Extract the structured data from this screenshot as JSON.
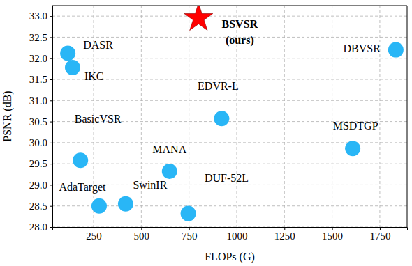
{
  "chart_data": {
    "type": "scatter",
    "x_label": "FLOPs (G)",
    "y_label": "PSNR (dB)",
    "xlim": [
      34,
      1893
    ],
    "ylim": [
      28.0,
      33.25
    ],
    "xticks": [
      250,
      500,
      750,
      1000,
      1250,
      1500,
      1750
    ],
    "yticks": [
      {
        "value": 28.0,
        "label": "28.0"
      },
      {
        "value": 28.5,
        "label": "28.5"
      },
      {
        "value": 29.0,
        "label": "29.0"
      },
      {
        "value": 29.5,
        "label": "29.5"
      },
      {
        "value": 30.0,
        "label": "30.0"
      },
      {
        "value": 30.5,
        "label": "30.5"
      },
      {
        "value": 31.0,
        "label": "31.0"
      },
      {
        "value": 31.5,
        "label": "31.5"
      },
      {
        "value": 32.0,
        "label": "32.0"
      },
      {
        "value": 32.5,
        "label": "32.5"
      },
      {
        "value": 33.0,
        "label": "33.0"
      }
    ],
    "grid": true,
    "series": [
      {
        "labels": [
          "DASR",
          "IKC",
          "DBVSR",
          "EDVR-L",
          "MSDTGP",
          "BasicVSR",
          "MANA",
          "AdaTarget",
          "SwinIR",
          "DUF-52L"
        ],
        "x": [
          115,
          140,
          1834,
          921,
          1608,
          181,
          648,
          279,
          418,
          746
        ],
        "values": [
          32.12,
          31.78,
          32.2,
          30.57,
          29.86,
          29.58,
          29.32,
          28.5,
          28.55,
          28.32
        ],
        "color": "#29b6f6",
        "marker": "circle"
      },
      {
        "labels": [
          "BSVSR (ours)"
        ],
        "x": [
          800
        ],
        "values": [
          32.95
        ],
        "color": "#ff0000",
        "marker": "star"
      }
    ]
  }
}
